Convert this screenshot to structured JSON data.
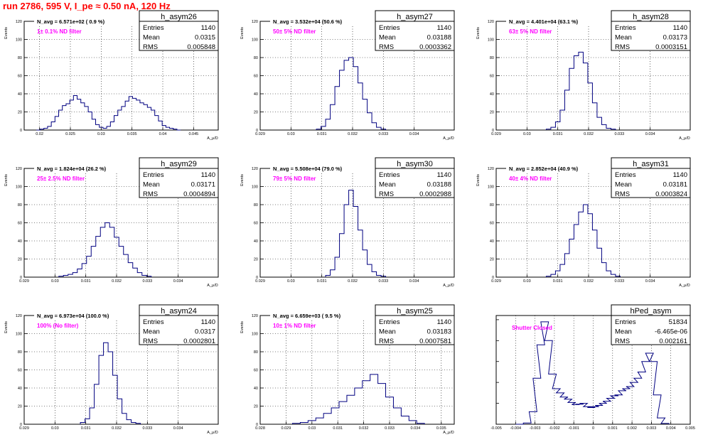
{
  "header": {
    "title": "run 2786,   595 V, I_pe ≈ 0.50 nA, 120 Hz"
  },
  "panels": [
    {
      "name": "h_asym26",
      "entries": "1140",
      "mean": "0.0315",
      "rms": "0.005848",
      "navg": "N_avg = 6.571e+02 ( 0.9 %)",
      "filter": "1± 0.1% ND filter",
      "chart_data": {
        "type": "histogram",
        "xlabel": "A_μ/D",
        "ylabel": "Events",
        "xlim": [
          0.0175,
          0.049
        ],
        "ylim": [
          0,
          120
        ],
        "x_ticks": [
          {
            "v": 0.02,
            "t": "0.02"
          },
          {
            "v": 0.025,
            "t": "0.025"
          },
          {
            "v": 0.03,
            "t": "0.03"
          },
          {
            "v": 0.035,
            "t": "0.035"
          },
          {
            "v": 0.04,
            "t": "0.04"
          },
          {
            "v": 0.045,
            "t": "0.045"
          }
        ],
        "x": [
          0.0198,
          0.0204,
          0.021,
          0.0216,
          0.0222,
          0.0228,
          0.0234,
          0.024,
          0.0246,
          0.0252,
          0.0258,
          0.0264,
          0.027,
          0.0276,
          0.0282,
          0.0288,
          0.0294,
          0.03,
          0.0306,
          0.0312,
          0.0318,
          0.0324,
          0.033,
          0.0336,
          0.0342,
          0.0348,
          0.0354,
          0.036,
          0.0366,
          0.0372,
          0.0378,
          0.0384,
          0.039,
          0.0396,
          0.0402,
          0.0408,
          0.0414,
          0.042,
          0.0426
        ],
        "values": [
          0,
          1,
          2,
          4,
          9,
          15,
          22,
          27,
          29,
          33,
          38,
          34,
          30,
          26,
          20,
          12,
          6,
          3,
          2,
          4,
          9,
          16,
          22,
          26,
          32,
          37,
          35,
          33,
          30,
          28,
          25,
          22,
          16,
          10,
          5,
          3,
          2,
          1,
          0
        ]
      }
    },
    {
      "name": "h_asym27",
      "entries": "1140",
      "mean": "0.03188",
      "rms": "0.0003362",
      "navg": "N_avg = 3.532e+04 (50.6 %)",
      "filter": "50± 5% ND filter",
      "chart_data": {
        "type": "histogram",
        "xlabel": "A_μ/D",
        "ylabel": "Events",
        "xlim": [
          0.029,
          0.0353
        ],
        "ylim": [
          0,
          120
        ],
        "x_ticks": [
          {
            "v": 0.029,
            "t": "0.029"
          },
          {
            "v": 0.03,
            "t": "0.03"
          },
          {
            "v": 0.031,
            "t": "0.031"
          },
          {
            "v": 0.032,
            "t": "0.032"
          },
          {
            "v": 0.033,
            "t": "0.033"
          },
          {
            "v": 0.034,
            "t": "0.034"
          }
        ],
        "x": [
          0.0309,
          0.03105,
          0.0312,
          0.03135,
          0.0315,
          0.03165,
          0.0318,
          0.03195,
          0.0321,
          0.03225,
          0.0324,
          0.03255,
          0.0327,
          0.03285,
          0.033
        ],
        "values": [
          1,
          4,
          12,
          28,
          48,
          66,
          77,
          80,
          70,
          52,
          34,
          19,
          8,
          3,
          1
        ]
      }
    },
    {
      "name": "h_asym28",
      "entries": "1140",
      "mean": "0.03173",
      "rms": "0.0003151",
      "navg": "N_avg = 4.401e+04 (63.1 %)",
      "filter": "63± 5% ND filter",
      "chart_data": {
        "type": "histogram",
        "xlabel": "A_μ/D",
        "ylabel": "Events",
        "xlim": [
          0.029,
          0.0353
        ],
        "ylim": [
          0,
          120
        ],
        "x_ticks": [
          {
            "v": 0.029,
            "t": "0.029"
          },
          {
            "v": 0.03,
            "t": "0.03"
          },
          {
            "v": 0.031,
            "t": "0.031"
          },
          {
            "v": 0.032,
            "t": "0.032"
          },
          {
            "v": 0.033,
            "t": "0.033"
          },
          {
            "v": 0.034,
            "t": "0.034"
          }
        ],
        "x": [
          0.0307,
          0.03085,
          0.031,
          0.03115,
          0.0313,
          0.03145,
          0.0316,
          0.03175,
          0.0319,
          0.03205,
          0.0322,
          0.03235,
          0.0325,
          0.03265,
          0.0328
        ],
        "values": [
          1,
          3,
          9,
          22,
          44,
          68,
          82,
          86,
          74,
          52,
          30,
          14,
          6,
          2,
          1
        ]
      }
    },
    {
      "name": "h_asym29",
      "entries": "1140",
      "mean": "0.03171",
      "rms": "0.0004894",
      "navg": "N_avg = 1.824e+04 (26.2 %)",
      "filter": "25± 2.5% ND filter",
      "chart_data": {
        "type": "histogram",
        "xlabel": "A_μ/D",
        "ylabel": "Events",
        "xlim": [
          0.029,
          0.0353
        ],
        "ylim": [
          0,
          120
        ],
        "x_ticks": [
          {
            "v": 0.029,
            "t": "0.029"
          },
          {
            "v": 0.03,
            "t": "0.03"
          },
          {
            "v": 0.031,
            "t": "0.031"
          },
          {
            "v": 0.032,
            "t": "0.032"
          },
          {
            "v": 0.033,
            "t": "0.033"
          },
          {
            "v": 0.034,
            "t": "0.034"
          }
        ],
        "x": [
          0.0302,
          0.03035,
          0.0305,
          0.03065,
          0.0308,
          0.03095,
          0.0311,
          0.03125,
          0.0314,
          0.03155,
          0.0317,
          0.03185,
          0.032,
          0.03215,
          0.0323,
          0.03245,
          0.0326,
          0.03275,
          0.0329,
          0.03305
        ],
        "values": [
          1,
          2,
          3,
          5,
          9,
          15,
          23,
          34,
          45,
          55,
          60,
          55,
          44,
          34,
          25,
          16,
          10,
          5,
          2,
          1
        ]
      }
    },
    {
      "name": "h_asym30",
      "entries": "1140",
      "mean": "0.03188",
      "rms": "0.0002988",
      "navg": "N_avg = 5.508e+04 (79.0 %)",
      "filter": "79± 5% ND filter",
      "chart_data": {
        "type": "histogram",
        "xlabel": "A_μ/D",
        "ylabel": "Events",
        "xlim": [
          0.029,
          0.0353
        ],
        "ylim": [
          0,
          120
        ],
        "x_ticks": [
          {
            "v": 0.029,
            "t": "0.029"
          },
          {
            "v": 0.03,
            "t": "0.03"
          },
          {
            "v": 0.031,
            "t": "0.031"
          },
          {
            "v": 0.032,
            "t": "0.032"
          },
          {
            "v": 0.033,
            "t": "0.033"
          },
          {
            "v": 0.034,
            "t": "0.034"
          }
        ],
        "x": [
          0.0312,
          0.03135,
          0.0315,
          0.03165,
          0.0318,
          0.03195,
          0.0321,
          0.03225,
          0.0324,
          0.03255,
          0.0327,
          0.03285,
          0.033
        ],
        "values": [
          2,
          8,
          22,
          48,
          80,
          96,
          78,
          52,
          30,
          14,
          6,
          2,
          1
        ]
      }
    },
    {
      "name": "h_asym31",
      "entries": "1140",
      "mean": "0.03181",
      "rms": "0.0003824",
      "navg": "N_avg = 2.852e+04 (40.9 %)",
      "filter": "40± 4% ND filter",
      "chart_data": {
        "type": "histogram",
        "xlabel": "A_μ/D",
        "ylabel": "Events",
        "xlim": [
          0.029,
          0.0353
        ],
        "ylim": [
          0,
          120
        ],
        "x_ticks": [
          {
            "v": 0.029,
            "t": "0.029"
          },
          {
            "v": 0.03,
            "t": "0.03"
          },
          {
            "v": 0.031,
            "t": "0.031"
          },
          {
            "v": 0.032,
            "t": "0.032"
          },
          {
            "v": 0.033,
            "t": "0.033"
          },
          {
            "v": 0.034,
            "t": "0.034"
          }
        ],
        "x": [
          0.0307,
          0.03085,
          0.031,
          0.03115,
          0.0313,
          0.03145,
          0.0316,
          0.03175,
          0.0319,
          0.03205,
          0.0322,
          0.03235,
          0.0325,
          0.03265,
          0.0328,
          0.03295
        ],
        "values": [
          1,
          3,
          7,
          14,
          26,
          42,
          58,
          72,
          80,
          70,
          52,
          32,
          16,
          7,
          3,
          1
        ]
      }
    },
    {
      "name": "h_asym24",
      "entries": "1140",
      "mean": "0.0317",
      "rms": "0.0002801",
      "navg": "N_avg = 6.973e+04 (100.0 %)",
      "filter": "100% (No filter)",
      "chart_data": {
        "type": "histogram",
        "xlabel": "A_μ/D",
        "ylabel": "Events",
        "xlim": [
          0.029,
          0.0353
        ],
        "ylim": [
          0,
          120
        ],
        "x_ticks": [
          {
            "v": 0.029,
            "t": "0.029"
          },
          {
            "v": 0.03,
            "t": "0.03"
          },
          {
            "v": 0.031,
            "t": "0.031"
          },
          {
            "v": 0.032,
            "t": "0.032"
          },
          {
            "v": 0.033,
            "t": "0.033"
          },
          {
            "v": 0.034,
            "t": "0.034"
          }
        ],
        "x": [
          0.0309,
          0.03105,
          0.0312,
          0.03135,
          0.0315,
          0.03165,
          0.0318,
          0.03195,
          0.0321,
          0.03225,
          0.0324,
          0.03255,
          0.0327
        ],
        "values": [
          2,
          6,
          18,
          44,
          76,
          90,
          80,
          54,
          28,
          12,
          5,
          2,
          1
        ]
      }
    },
    {
      "name": "h_asym25",
      "entries": "1140",
      "mean": "0.03183",
      "rms": "0.0007581",
      "navg": "N_avg = 6.659e+03 ( 9.5 %)",
      "filter": "10± 1% ND filter",
      "chart_data": {
        "type": "histogram",
        "xlabel": "A_μ/D",
        "ylabel": "Events",
        "xlim": [
          0.028,
          0.0355
        ],
        "ylim": [
          0,
          120
        ],
        "x_ticks": [
          {
            "v": 0.028,
            "t": "0.028"
          },
          {
            "v": 0.029,
            "t": "0.029"
          },
          {
            "v": 0.03,
            "t": "0.03"
          },
          {
            "v": 0.031,
            "t": "0.031"
          },
          {
            "v": 0.032,
            "t": "0.032"
          },
          {
            "v": 0.033,
            "t": "0.033"
          },
          {
            "v": 0.034,
            "t": "0.034"
          },
          {
            "v": 0.035,
            "t": "0.035"
          }
        ],
        "x": [
          0.0294,
          0.0297,
          0.03,
          0.0303,
          0.0306,
          0.0309,
          0.0312,
          0.0315,
          0.0318,
          0.0321,
          0.0324,
          0.0327,
          0.033,
          0.0333,
          0.0336,
          0.0339,
          0.0342
        ],
        "values": [
          1,
          2,
          4,
          7,
          12,
          18,
          25,
          32,
          40,
          48,
          55,
          45,
          30,
          18,
          9,
          4,
          1
        ]
      }
    },
    {
      "name": "hPed_asym",
      "entries": "51834",
      "mean": "-6.465e-06",
      "rms": "0.002161",
      "navg": "",
      "filter": "Shutter Closed",
      "chart_data": {
        "type": "histogram",
        "xlabel": "",
        "ylabel": "",
        "xlim": [
          -0.005,
          0.005
        ],
        "ylim": [
          0,
          2600
        ],
        "x_ticks": [
          {
            "v": -0.005,
            "t": "-0.005"
          },
          {
            "v": -0.004,
            "t": "-0.004"
          },
          {
            "v": -0.003,
            "t": "-0.003"
          },
          {
            "v": -0.002,
            "t": "-0.002"
          },
          {
            "v": -0.001,
            "t": "-0.001"
          },
          {
            "v": 0,
            "t": "0"
          },
          {
            "v": 0.001,
            "t": "0.001"
          },
          {
            "v": 0.002,
            "t": "0.002"
          },
          {
            "v": 0.003,
            "t": "0.003"
          },
          {
            "v": 0.004,
            "t": "0.004"
          },
          {
            "v": 0.005,
            "t": "0.005"
          }
        ],
        "x": [
          -0.0038,
          -0.0034,
          -0.0031,
          -0.0029,
          -0.0027,
          -0.0025,
          -0.0023,
          -0.0021,
          -0.0019,
          -0.0017,
          -0.0015,
          -0.0013,
          -0.0011,
          -0.0009,
          -0.0007,
          -0.0005,
          -0.0003,
          -0.0001,
          0.0001,
          0.0003,
          0.0005,
          0.0007,
          0.0009,
          0.0011,
          0.0013,
          0.0015,
          0.0017,
          0.0019,
          0.0021,
          0.0023,
          0.0025,
          0.0027,
          0.0029,
          0.0031,
          0.0033,
          0.0035,
          0.0037
        ],
        "values": [
          0,
          30,
          300,
          1100,
          1900,
          2450,
          2000,
          1200,
          850,
          750,
          650,
          600,
          520,
          470,
          480,
          500,
          420,
          400,
          420,
          450,
          500,
          550,
          620,
          680,
          700,
          800,
          850,
          900,
          1000,
          1100,
          1250,
          1500,
          1700,
          1500,
          700,
          150,
          20
        ]
      }
    }
  ]
}
